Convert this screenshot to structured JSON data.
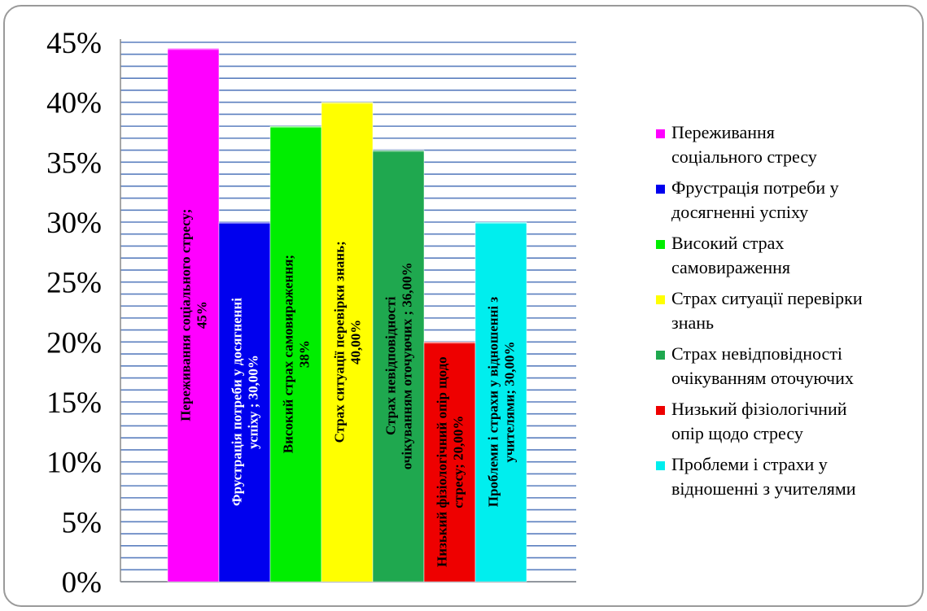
{
  "chart_data": {
    "type": "bar",
    "title": "",
    "xlabel": "",
    "ylabel": "",
    "ylim": [
      0,
      45
    ],
    "y_ticks": [
      "0%",
      "5%",
      "10%",
      "15%",
      "20%",
      "25%",
      "30%",
      "35%",
      "40%",
      "45%"
    ],
    "y_tick_values": [
      0,
      5,
      10,
      15,
      20,
      25,
      30,
      35,
      40,
      45
    ],
    "grid": true,
    "legend_position": "right",
    "series": [
      {
        "name": "Переживання соціального стресу",
        "value": 44.5,
        "color": "#ff00ff",
        "label_lines": [
          "Переживання соціального стресу;",
          "45%"
        ],
        "label_color": "#000000"
      },
      {
        "name": "Фрустрація потреби у досягненні успіху",
        "value": 30,
        "color": "#0000ee",
        "label_lines": [
          "Фрустрація потреби у досягненні",
          "успіху ; 30,00%"
        ],
        "label_color": "#ffffff"
      },
      {
        "name": "Високий страх самовираження",
        "value": 38,
        "color": "#00ee00",
        "label_lines": [
          "Високий страх самовираження;",
          "38%"
        ],
        "label_color": "#000000"
      },
      {
        "name": "Страх ситуації перевірки знань",
        "value": 40,
        "color": "#ffff00",
        "label_lines": [
          "Страх ситуації перевірки знань;",
          "40,00%"
        ],
        "label_color": "#000000"
      },
      {
        "name": "Страх невідповідності очікуванням оточуючих",
        "value": 36,
        "color": "#1fa84f",
        "label_lines": [
          "Страх невідповідності",
          "очікуванням оточуючих ; 36,00%"
        ],
        "label_color": "#000000"
      },
      {
        "name": "Низький фізіологічний опір щодо стресу",
        "value": 20,
        "color": "#ee0000",
        "label_lines": [
          "Низький фізіологічний опір щодо",
          "стресу; 20,00%"
        ],
        "label_color": "#000000"
      },
      {
        "name": "Проблеми і страхи у відношенні з учителями",
        "value": 30,
        "color": "#00eeee",
        "label_lines": [
          "Проблеми і страхи у відношенні з",
          "учителями; 30,00%"
        ],
        "label_color": "#000000"
      }
    ],
    "legend": [
      [
        "Переживання",
        "соціального стресу"
      ],
      [
        "Фрустрація потреби у",
        "досягненні успіху"
      ],
      [
        "Високий страх",
        "самовираження"
      ],
      [
        "Страх ситуації перевірки",
        "знань"
      ],
      [
        "Страх невідповідності",
        "очікуванням оточуючих"
      ],
      [
        "Низький фізіологічний",
        "опір щодо стресу"
      ],
      [
        "Проблеми і страхи у",
        "відношенні з учителями"
      ]
    ]
  }
}
